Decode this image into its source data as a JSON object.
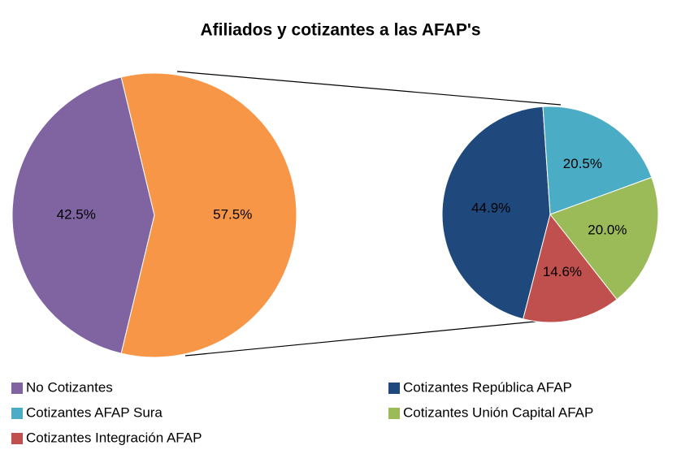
{
  "chart_data": {
    "type": "pie",
    "title": "Afiliados y cotizantes a las AFAP's",
    "categories": [
      "No Cotizantes",
      null
    ],
    "values": [
      42.5,
      57.5
    ],
    "value_labels": [
      "42.5%",
      "57.5%"
    ],
    "colors": [
      "#8064a2",
      "#f79646"
    ],
    "breakout": {
      "categories": [
        "Cotizantes República AFAP",
        "Cotizantes AFAP Sura",
        "Cotizantes Unión Capital AFAP",
        "Cotizantes Integración AFAP"
      ],
      "values": [
        44.9,
        20.5,
        20.0,
        14.6
      ],
      "value_labels": [
        "44.9%",
        "20.5%",
        "20.0%",
        "14.6%"
      ],
      "colors": [
        "#1f497d",
        "#4bacc6",
        "#9bbb59",
        "#c0504d"
      ]
    }
  }
}
